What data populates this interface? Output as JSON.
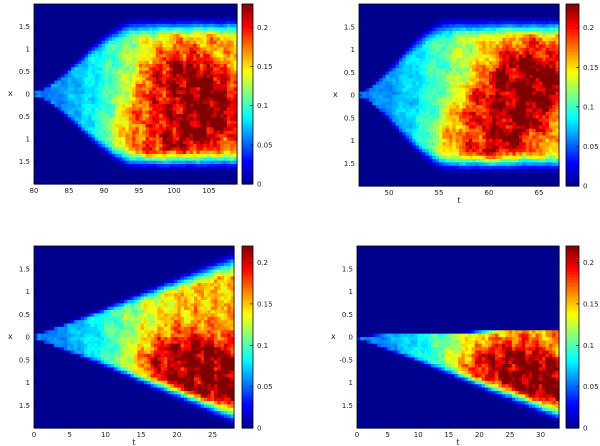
{
  "figure": {
    "background": "#ffffff",
    "colormap": [
      "#00008f",
      "#0000ff",
      "#0080ff",
      "#00ffff",
      "#80ff80",
      "#ffff00",
      "#ff8000",
      "#ff0000",
      "#800000"
    ]
  },
  "chart_data": [
    {
      "type": "heatmap",
      "panel": "top-left",
      "xlabel": "",
      "ylabel": "x",
      "x_ticks": [
        "80",
        "85",
        "90",
        "95",
        "100",
        "105"
      ],
      "y_ticks": [
        "1.5",
        "1",
        "0.5",
        "0",
        "0.5",
        "1",
        "1.5"
      ],
      "colorbar_ticks": [
        "0.2",
        "0.15",
        "0.1",
        "0.05",
        "0"
      ],
      "colorbar_range": [
        0,
        0.23
      ],
      "xlim": [
        80,
        109
      ],
      "ylim": [
        -2,
        2
      ],
      "field": {
        "shape": "cone",
        "onset_x": 80,
        "saturation_x": 95,
        "max_halfwidth": 1.7,
        "hot_centers": [
          {
            "x": 100,
            "y": 0.2
          },
          {
            "x": 96,
            "y": -0.9
          },
          {
            "x": 104,
            "y": -0.4
          }
        ]
      }
    },
    {
      "type": "heatmap",
      "panel": "top-right",
      "xlabel": "t",
      "ylabel": "x",
      "x_ticks": [
        "50",
        "55",
        "60",
        "65"
      ],
      "y_ticks": [
        "1.5",
        "1",
        "0.5",
        "0",
        "0.5",
        "1",
        "1.5"
      ],
      "colorbar_ticks": [
        "0.2",
        "0.15",
        "0.1",
        "0.05",
        "0"
      ],
      "colorbar_range": [
        0,
        0.23
      ],
      "xlim": [
        47,
        67
      ],
      "ylim": [
        -2,
        2
      ],
      "field": {
        "shape": "cone",
        "onset_x": 47,
        "saturation_x": 56,
        "max_halfwidth": 1.7,
        "hot_centers": [
          {
            "x": 61,
            "y": -0.4
          },
          {
            "x": 58,
            "y": -1.1
          },
          {
            "x": 64,
            "y": 0.3
          }
        ]
      }
    },
    {
      "type": "heatmap",
      "panel": "bottom-left",
      "xlabel": "t",
      "ylabel": "x",
      "x_ticks": [
        "0",
        "5",
        "10",
        "15",
        "20",
        "25"
      ],
      "y_ticks": [
        "1.5",
        "1",
        "0.5",
        "0",
        "0.5",
        "1",
        "1.5"
      ],
      "colorbar_ticks": [
        "0.2",
        "0.15",
        "0.1",
        "0.05",
        "0"
      ],
      "colorbar_range": [
        0,
        0.22
      ],
      "xlim": [
        0,
        28
      ],
      "ylim": [
        -2,
        2
      ],
      "field": {
        "shape": "cone",
        "onset_x": 0,
        "upper_slope": 0.068,
        "lower_slope": 0.07,
        "hot_centers": [
          {
            "x": 24,
            "y": -1.4
          },
          {
            "x": 19,
            "y": -0.7
          },
          {
            "x": 26,
            "y": -0.9
          }
        ]
      }
    },
    {
      "type": "heatmap",
      "panel": "bottom-right",
      "xlabel": "t",
      "ylabel": "x",
      "x_ticks": [
        "0",
        "5",
        "10",
        "15",
        "20",
        "25",
        "30"
      ],
      "y_ticks": [
        "1.5",
        "1",
        "0.5",
        "0",
        "-0.5",
        "1",
        "1.5"
      ],
      "colorbar_ticks": [
        "0.2",
        "0.15",
        "0.1",
        "0.05",
        "0"
      ],
      "colorbar_range": [
        0,
        0.22
      ],
      "xlim": [
        0,
        33
      ],
      "ylim": [
        -2,
        2
      ],
      "field": {
        "shape": "wedge",
        "onset_x": 0,
        "upper_slope": 0.005,
        "lower_slope": 0.058,
        "hot_centers": [
          {
            "x": 28,
            "y": -1.1
          },
          {
            "x": 22,
            "y": -0.9
          },
          {
            "x": 31,
            "y": -1.5
          }
        ]
      }
    }
  ]
}
